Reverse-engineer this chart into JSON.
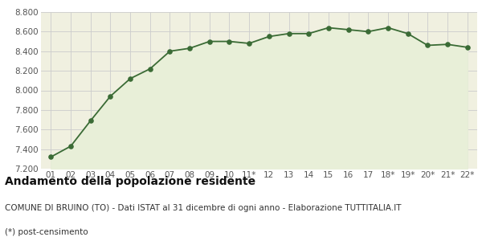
{
  "x_labels": [
    "01",
    "02",
    "03",
    "04",
    "05",
    "06",
    "07",
    "08",
    "09",
    "10",
    "11*",
    "12",
    "13",
    "14",
    "15",
    "16",
    "17",
    "18*",
    "19*",
    "20*",
    "21*",
    "22*"
  ],
  "y_values": [
    7320,
    7430,
    7690,
    7940,
    8120,
    8220,
    8400,
    8430,
    8500,
    8500,
    8480,
    8550,
    8580,
    8580,
    8640,
    8620,
    8600,
    8640,
    8580,
    8460,
    8470,
    8440
  ],
  "line_color": "#3a6b35",
  "fill_color": "#e8efd8",
  "marker_color": "#3a6b35",
  "background_color": "#f0f0e0",
  "grid_color": "#cccccc",
  "ylim": [
    7200,
    8800
  ],
  "yticks": [
    7200,
    7400,
    7600,
    7800,
    8000,
    8200,
    8400,
    8600,
    8800
  ],
  "title": "Andamento della popolazione residente",
  "subtitle": "COMUNE DI BRUINO (TO) - Dati ISTAT al 31 dicembre di ogni anno - Elaborazione TUTTITALIA.IT",
  "footnote": "(*) post-censimento",
  "title_fontsize": 10,
  "subtitle_fontsize": 7.5,
  "footnote_fontsize": 7.5,
  "tick_fontsize": 7.5,
  "axis_label_color": "#555555"
}
